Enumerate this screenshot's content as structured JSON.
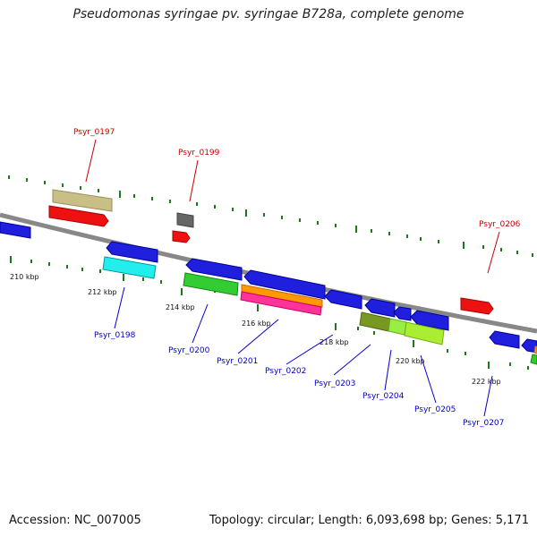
{
  "title": "Pseudomonas syringae pv. syringae B728a, complete genome",
  "footer": {
    "accession": "Accession: NC_007005",
    "summary": "Topology: circular; Length: 6,093,698 bp; Genes: 5,171"
  },
  "scale_labels": [
    "210 kbp",
    "212 kbp",
    "214 kbp",
    "216 kbp",
    "218 kbp",
    "220 kbp",
    "222 kbp"
  ],
  "gene_labels": {
    "forward": [
      "Psyr_0197",
      "Psyr_0199",
      "Psyr_0206"
    ],
    "reverse": [
      "Psyr_0198",
      "Psyr_0200",
      "Psyr_0201",
      "Psyr_0202",
      "Psyr_0203",
      "Psyr_0204",
      "Psyr_0205",
      "Psyr_0207"
    ]
  },
  "colors": {
    "backbone": "#8a8a8a",
    "forward_label": "#cc0000",
    "reverse_label": "#0000cc",
    "tick": "#1a7a1a"
  }
}
